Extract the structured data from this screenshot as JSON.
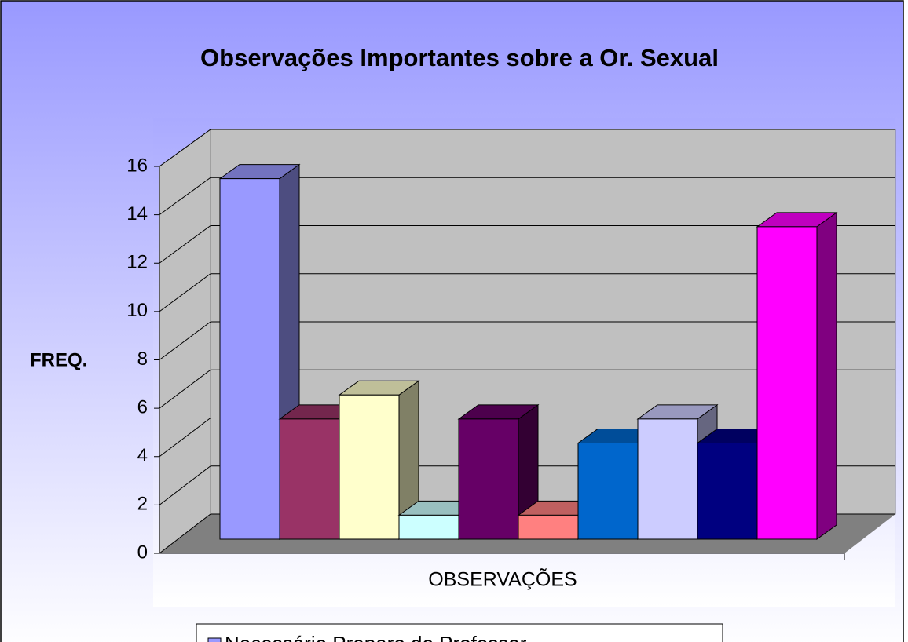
{
  "chart_data": {
    "type": "bar3d",
    "title": "Observações Importantes sobre a Or. Sexual",
    "y_label": "FREQ.",
    "x_label": "OBSERVAÇÕES",
    "ylim": [
      0,
      16
    ],
    "yticks": [
      0,
      2,
      4,
      6,
      8,
      10,
      12,
      14,
      16
    ],
    "grid": true,
    "legend": "bottom",
    "series": [
      {
        "name": "Necessário Preparo do Professor",
        "color": "#9999ff",
        "values": [
          15
        ]
      },
      {
        "color": "#993366",
        "values": [
          5
        ]
      },
      {
        "color": "#ffffcc",
        "values": [
          6
        ]
      },
      {
        "color": "#ccffff",
        "values": [
          1
        ]
      },
      {
        "color": "#660066",
        "values": [
          5
        ]
      },
      {
        "color": "#ff8080",
        "values": [
          1
        ]
      },
      {
        "color": "#0066cc",
        "values": [
          4
        ]
      },
      {
        "color": "#ccccff",
        "values": [
          5
        ]
      },
      {
        "color": "#000080",
        "values": [
          4
        ]
      },
      {
        "color": "#ff00ff",
        "values": [
          13
        ]
      }
    ]
  }
}
